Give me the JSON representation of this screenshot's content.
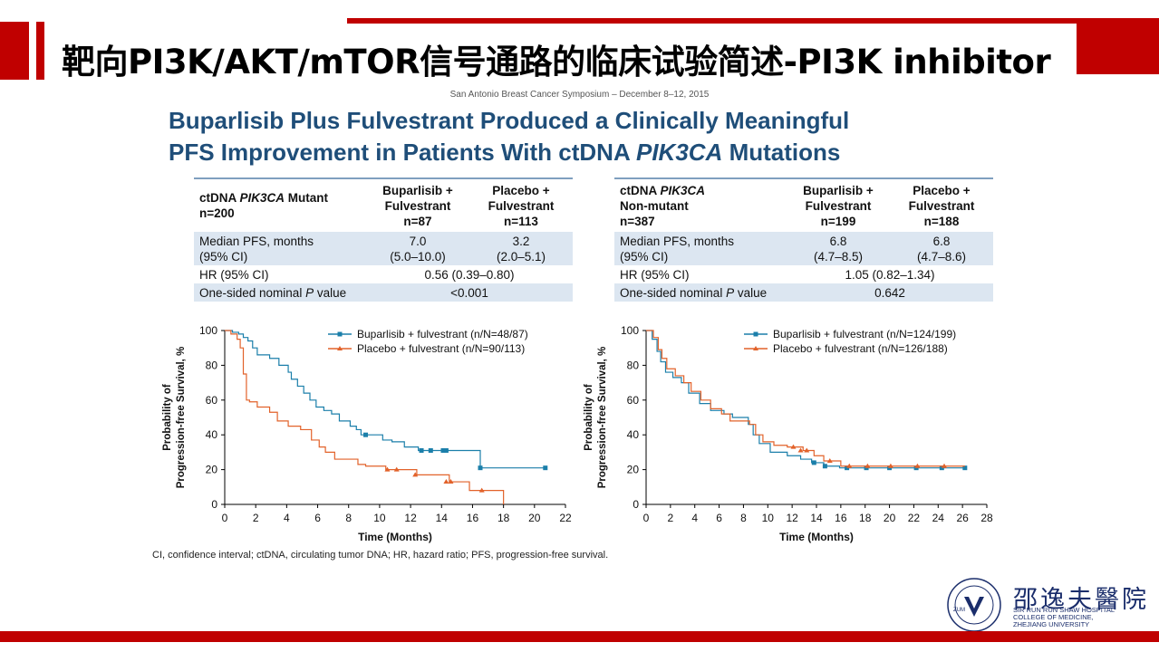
{
  "slide": {
    "title": "靶向PI3K/AKT/mTOR信号通路的临床试验简述-PI3K inhibitor",
    "conference": "San Antonio Breast Cancer Symposium – December 8–12, 2015",
    "headline_line1": "Buparlisib Plus Fulvestrant Produced a Clinically Meaningful",
    "headline_line2_a": "PFS Improvement in Patients With ctDNA ",
    "headline_line2_b": "PIK3CA",
    "headline_line2_c": " Mutations",
    "footnote": "CI, confidence interval; ctDNA, circulating tumor DNA; HR, hazard ratio; PFS, progression-free survival.",
    "logo_cn": "邵逸夫醫院",
    "logo_en_1": "SIR RUN RUN SHAW HOSPITAL",
    "logo_en_2": "COLLEGE OF MEDICINE,",
    "logo_en_3": "ZHEJIANG UNIVERSITY",
    "logo_seal": "ZUM"
  },
  "table_left": {
    "group_a": "ctDNA ",
    "group_b": "PIK3CA",
    "group_c": " Mutant",
    "group_n": "n=200",
    "arm1_l1": "Buparlisib +",
    "arm1_l2": "Fulvestrant",
    "arm1_n": "n=87",
    "arm2_l1": "Placebo +",
    "arm2_l2": "Fulvestrant",
    "arm2_n": "n=113",
    "pfs_label_1": "Median PFS, months",
    "pfs_label_2": "(95% CI)",
    "pfs_arm1_1": "7.0",
    "pfs_arm1_2": "(5.0–10.0)",
    "pfs_arm2_1": "3.2",
    "pfs_arm2_2": "(2.0–5.1)",
    "hr_label": "HR (95% CI)",
    "hr_value": "0.56 (0.39–0.80)",
    "p_label_a": "One-sided nominal ",
    "p_label_b": "P",
    "p_label_c": " value",
    "p_value": "<0.001"
  },
  "table_right": {
    "group_a": "ctDNA ",
    "group_b": "PIK3CA",
    "group_c": "Non-mutant",
    "group_n": "n=387",
    "arm1_l1": "Buparlisib +",
    "arm1_l2": "Fulvestrant",
    "arm1_n": "n=199",
    "arm2_l1": "Placebo +",
    "arm2_l2": "Fulvestrant",
    "arm2_n": "n=188",
    "pfs_label_1": "Median PFS, months",
    "pfs_label_2": "(95% CI)",
    "pfs_arm1_1": "6.8",
    "pfs_arm1_2": "(4.7–8.5)",
    "pfs_arm2_1": "6.8",
    "pfs_arm2_2": "(4.7–8.6)",
    "hr_label": "HR (95% CI)",
    "hr_value": "1.05 (0.82–1.34)",
    "p_label_a": "One-sided nominal ",
    "p_label_b": "P",
    "p_label_c": " value",
    "p_value": "0.642"
  },
  "colors": {
    "buparlisib": "#1b7faa",
    "placebo": "#e2622a",
    "title_red": "#c00000",
    "headline_blue": "#1f4e79"
  },
  "chart_data": [
    {
      "type": "line",
      "step": true,
      "xlabel": "Time (Months)",
      "ylabel_1": "Probability of",
      "ylabel_2": "Progression-free Survival, %",
      "xlim": [
        0,
        22
      ],
      "ylim": [
        0,
        100
      ],
      "xticks": [
        0,
        2,
        4,
        6,
        8,
        10,
        12,
        14,
        16,
        18,
        20,
        22
      ],
      "yticks": [
        0,
        20,
        40,
        60,
        80,
        100
      ],
      "legend_position": "top-right",
      "series": [
        {
          "name": "Buparlisib + fulvestrant (n/N=48/87)",
          "color": "#1b7faa",
          "marker": "square",
          "x": [
            0,
            0.5,
            0.9,
            1.2,
            1.5,
            1.8,
            2.1,
            2.9,
            3.2,
            3.5,
            4.1,
            4.3,
            4.7,
            5.1,
            5.5,
            5.9,
            6.4,
            6.9,
            7.4,
            8.1,
            8.5,
            8.8,
            10.2,
            10.8,
            11.6,
            12.5,
            14.5,
            16.5,
            20.7
          ],
          "y": [
            100,
            99,
            98,
            96,
            94,
            90,
            86,
            84,
            84,
            80,
            76,
            72,
            68,
            64,
            60,
            56,
            54,
            52,
            48,
            45,
            43,
            40,
            37,
            36,
            33,
            31,
            31,
            21,
            21
          ],
          "censors_x": [
            9.1,
            12.7,
            13.3,
            14.1,
            14.3,
            16.5,
            20.7
          ],
          "censors_y": [
            40,
            31,
            31,
            31,
            31,
            21,
            21
          ]
        },
        {
          "name": "Placebo + fulvestrant (n/N=90/113)",
          "color": "#e2622a",
          "marker": "triangle",
          "x": [
            0,
            0.4,
            0.8,
            1.0,
            1.2,
            1.4,
            1.6,
            2.1,
            2.9,
            3.4,
            4.1,
            4.9,
            5.6,
            6.1,
            6.5,
            7.1,
            8.6,
            9.1,
            10.4,
            12.4,
            14.5,
            15.8,
            17.8,
            18.0
          ],
          "y": [
            100,
            98,
            95,
            90,
            75,
            60,
            59,
            56,
            53,
            48,
            45,
            43,
            37,
            33,
            30,
            26,
            23,
            22,
            20,
            17,
            13,
            8,
            8,
            0
          ],
          "censors_x": [
            10.5,
            11.1,
            12.3,
            14.3,
            14.6,
            16.6
          ],
          "censors_y": [
            20,
            20,
            17,
            13,
            13,
            8
          ]
        }
      ]
    },
    {
      "type": "line",
      "step": true,
      "xlabel": "Time (Months)",
      "ylabel_1": "Probability of",
      "ylabel_2": "Progression-free Survival, %",
      "xlim": [
        0,
        28
      ],
      "ylim": [
        0,
        100
      ],
      "xticks": [
        0,
        2,
        4,
        6,
        8,
        10,
        12,
        14,
        16,
        18,
        20,
        22,
        24,
        26,
        28
      ],
      "yticks": [
        0,
        20,
        40,
        60,
        80,
        100
      ],
      "legend_position": "top-right",
      "series": [
        {
          "name": "Buparlisib + fulvestrant (n/N=124/199)",
          "color": "#1b7faa",
          "marker": "square",
          "x": [
            0,
            0.5,
            0.9,
            1.2,
            1.6,
            2.2,
            2.9,
            3.5,
            4.4,
            5.3,
            6.4,
            7.1,
            8.4,
            8.8,
            9.3,
            10.2,
            11.6,
            12.7,
            13.6,
            14.6,
            15.9,
            17.5,
            26.2
          ],
          "y": [
            100,
            95,
            88,
            82,
            76,
            73,
            70,
            64,
            58,
            54,
            52,
            50,
            46,
            40,
            35,
            30,
            28,
            26,
            24,
            22,
            21,
            21,
            21
          ],
          "censors_x": [
            13.8,
            14.7,
            16.5,
            18.1,
            20.0,
            22.2,
            24.3,
            26.2
          ],
          "censors_y": [
            24,
            22,
            21,
            21,
            21,
            21,
            21,
            21
          ]
        },
        {
          "name": "Placebo + fulvestrant (n/N=126/188)",
          "color": "#e2622a",
          "marker": "triangle",
          "x": [
            0,
            0.6,
            1.0,
            1.3,
            1.7,
            2.4,
            3.1,
            3.7,
            4.5,
            5.3,
            6.2,
            6.9,
            8.5,
            9.0,
            9.6,
            10.5,
            11.6,
            12.9,
            13.8,
            14.6,
            16.0,
            26.2
          ],
          "y": [
            100,
            96,
            89,
            84,
            78,
            74,
            70,
            65,
            60,
            55,
            52,
            48,
            46,
            40,
            36,
            34,
            33,
            31,
            28,
            25,
            22,
            22
          ],
          "censors_x": [
            12.1,
            12.7,
            13.2,
            15.1,
            16.7,
            18.2,
            20.1,
            22.3,
            24.5
          ],
          "censors_y": [
            33,
            31,
            31,
            25,
            22,
            22,
            22,
            22,
            22
          ]
        }
      ]
    }
  ]
}
